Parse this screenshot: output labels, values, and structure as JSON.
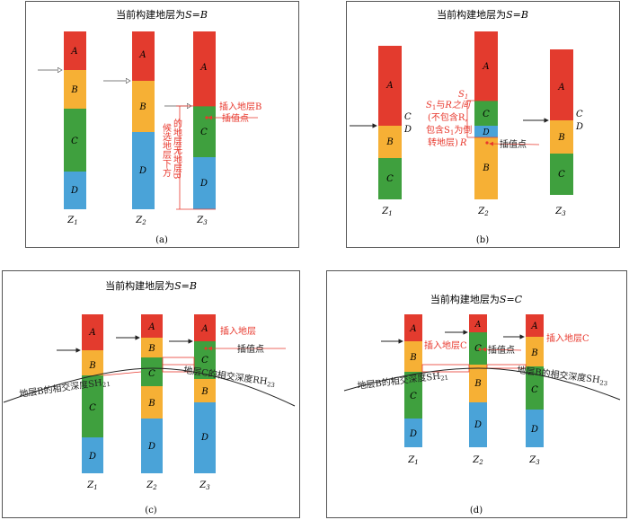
{
  "colors": {
    "A": "#e33b2e",
    "B": "#f6b035",
    "C": "#3fa03e",
    "D": "#4aa3d8",
    "annotation": "#e8382d",
    "arrow": "#222222"
  },
  "panels": [
    {
      "id": "a",
      "title_prefix": "当前构建地层为",
      "title_eq": "S=B",
      "caption": "(a)",
      "columns": [
        {
          "label": "Z",
          "sub": "1",
          "layers": [
            "A",
            "B",
            "C",
            "D"
          ]
        },
        {
          "label": "Z",
          "sub": "2",
          "layers": [
            "A",
            "B",
            "D"
          ]
        },
        {
          "label": "Z",
          "sub": "3",
          "layers": [
            "A",
            "C",
            "D"
          ]
        }
      ],
      "annotations": {
        "insert": "插入地层B",
        "interp": "插值点",
        "candidate_col1": "候选地层下方",
        "candidate_col2": "的地层无地层B"
      }
    },
    {
      "id": "b",
      "title_prefix": "当前构建地层为",
      "title_eq": "S=B",
      "caption": "(b)",
      "columns": [
        {
          "label": "Z",
          "sub": "1",
          "layers": [
            "A",
            "B",
            "C"
          ],
          "side_labels": [
            "C",
            "D"
          ]
        },
        {
          "label": "Z",
          "sub": "2",
          "layers": [
            "A",
            "C",
            "D",
            "B"
          ]
        },
        {
          "label": "Z",
          "sub": "3",
          "layers": [
            "A",
            "B",
            "C"
          ],
          "side_labels": [
            "C",
            "D"
          ]
        }
      ],
      "annotations": {
        "s_label": "S",
        "s_sub": "1",
        "r_label": "R",
        "note_l1a": "S",
        "note_l1b": "与",
        "note_l1c": "R之间",
        "note_l2": "(不包含R,",
        "note_l3a": "包含S",
        "note_l3b": "为倒",
        "note_l4": "转地层)",
        "interp": "插值点"
      }
    },
    {
      "id": "c",
      "title_prefix": "当前构建地层为",
      "title_eq": "S=B",
      "caption": "(c)",
      "columns": [
        {
          "label": "Z",
          "sub": "1",
          "layers": [
            "A",
            "B",
            "C",
            "D"
          ]
        },
        {
          "label": "Z",
          "sub": "2",
          "layers": [
            "A",
            "B",
            "C",
            "B",
            "D"
          ]
        },
        {
          "label": "Z",
          "sub": "3",
          "layers": [
            "A",
            "C",
            "B",
            "D"
          ]
        }
      ],
      "annotations": {
        "insert": "插入地层",
        "interp": "插值点",
        "left_curve_label": "地层B的相交深度SH",
        "left_curve_sub": "21",
        "right_curve_label": "地层C的相交深度RH",
        "right_curve_sub": "23"
      }
    },
    {
      "id": "d",
      "title_prefix": "当前构建地层为",
      "title_eq": "S=C",
      "caption": "(d)",
      "columns": [
        {
          "label": "Z",
          "sub": "1",
          "layers": [
            "A",
            "B",
            "C",
            "D"
          ]
        },
        {
          "label": "Z",
          "sub": "2",
          "layers": [
            "A",
            "C",
            "B",
            "D"
          ]
        },
        {
          "label": "Z",
          "sub": "3",
          "layers": [
            "A",
            "B",
            "C",
            "D"
          ]
        }
      ],
      "annotations": {
        "insert_left": "插入地层C",
        "interp": "插值点",
        "insert_right": "插入地层C",
        "left_curve_label": "地层B的相交深度SH",
        "left_curve_sub": "21",
        "right_curve_label": "地层B的相交深度SH",
        "right_curve_sub": "23"
      }
    }
  ]
}
